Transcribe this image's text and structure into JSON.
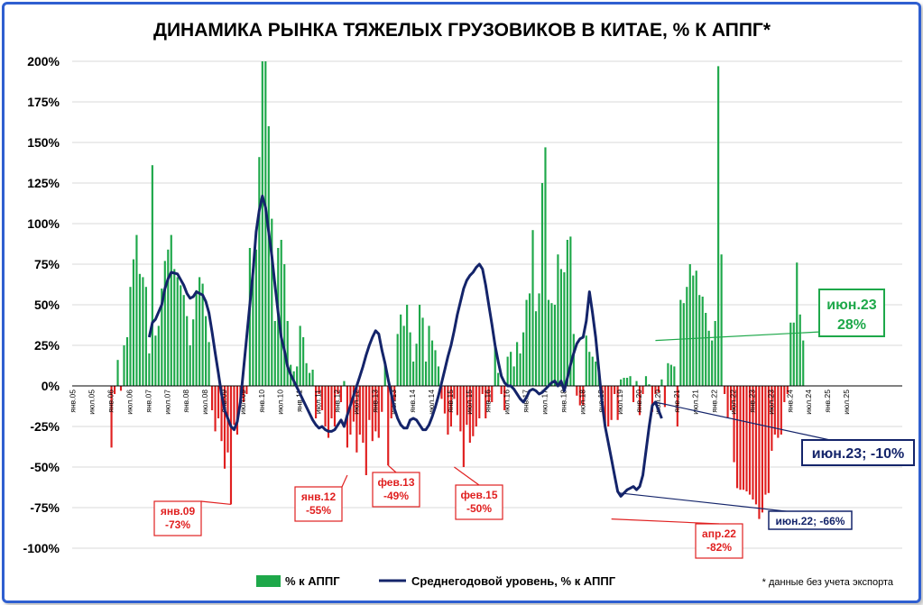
{
  "chart_data": {
    "type": "bar",
    "title": "ДИНАМИКА РЫНКА ТЯЖЕЛЫХ ГРУЗОВИКОВ В КИТАЕ, % К АППГ*",
    "ylim": [
      -100,
      200
    ],
    "yticks": [
      "-100%",
      "-75%",
      "-50%",
      "-25%",
      "0%",
      "25%",
      "50%",
      "75%",
      "100%",
      "125%",
      "150%",
      "175%",
      "200%"
    ],
    "x_start": "янв.05",
    "x_tick_labels": [
      "янв.05",
      "июл.05",
      "янв.06",
      "июл.06",
      "янв.07",
      "июл.07",
      "янв.08",
      "июл.08",
      "янв.09",
      "июл.09",
      "янв.10",
      "июл.10",
      "янв.11",
      "июл.11",
      "янв.12",
      "июл.12",
      "янв.13",
      "июл.13",
      "янв.14",
      "июл.14",
      "янв.15",
      "июл.15",
      "янв.16",
      "июл.16",
      "янв.17",
      "июл.17",
      "янв.18",
      "июл.18",
      "янв.19",
      "июл.19",
      "янв.20",
      "июл.20",
      "янв.21",
      "июл.21",
      "янв.22",
      "июл.22",
      "янв.23",
      "июл.23",
      "янв.24",
      "июл.24",
      "янв.25",
      "июл.25"
    ],
    "series": [
      {
        "name": "% к АППГ",
        "color_pos": "#1ea84a",
        "color_neg": "#e02020",
        "values": [
          null,
          null,
          null,
          null,
          null,
          null,
          null,
          null,
          null,
          null,
          null,
          null,
          -38,
          -5,
          16,
          -3,
          25,
          30,
          61,
          78,
          93,
          69,
          67,
          61,
          20,
          136,
          31,
          37,
          60,
          77,
          84,
          93,
          72,
          67,
          62,
          56,
          43,
          25,
          41,
          59,
          67,
          63,
          43,
          27,
          -15,
          -28,
          -20,
          -34,
          -51,
          -41,
          -73,
          -24,
          -30,
          -12,
          -10,
          -5,
          85,
          72,
          84,
          141,
          200,
          200,
          160,
          103,
          40,
          85,
          90,
          75,
          40,
          13,
          9,
          12,
          37,
          30,
          14,
          8,
          10,
          -20,
          -5,
          -15,
          -25,
          -32,
          -20,
          -25,
          -5,
          -10,
          3,
          -38,
          -30,
          -22,
          -41,
          -30,
          -35,
          -55,
          -21,
          -34,
          -28,
          -32,
          -16,
          13,
          -49,
          -20,
          -9,
          32,
          44,
          37,
          50,
          33,
          15,
          26,
          50,
          42,
          15,
          37,
          28,
          22,
          12,
          -8,
          -17,
          -30,
          -25,
          -8,
          -18,
          -28,
          -50,
          -24,
          -35,
          -31,
          -25,
          -20,
          -5,
          -20,
          -10,
          -10,
          26,
          8,
          -5,
          -15,
          18,
          21,
          12,
          27,
          20,
          33,
          53,
          57,
          96,
          46,
          57,
          125,
          147,
          53,
          51,
          50,
          81,
          72,
          70,
          90,
          92,
          32,
          -6,
          -12,
          -12,
          31,
          21,
          18,
          15,
          11,
          -5,
          -23,
          -25,
          -21,
          -5,
          -21,
          4,
          5,
          5,
          6,
          -10,
          3,
          -18,
          -5,
          6,
          1,
          -16,
          -5,
          -4,
          4,
          -13,
          14,
          13,
          12,
          -25,
          53,
          51,
          61,
          75,
          68,
          71,
          56,
          55,
          45,
          34,
          28,
          40,
          197,
          81,
          -5,
          -20,
          -15,
          -47,
          -63,
          -64,
          -64,
          -65,
          -67,
          -70,
          -73,
          -82,
          -78,
          -67,
          -66,
          -40,
          -30,
          -32,
          -30,
          -10,
          -5,
          39,
          39,
          76,
          44,
          28,
          null,
          null,
          null,
          null,
          null,
          null,
          null,
          null,
          null,
          null,
          null,
          null,
          null,
          null,
          null,
          null,
          null,
          null,
          null,
          null,
          null,
          null,
          null,
          null,
          null,
          null,
          null,
          null,
          null,
          null,
          null
        ]
      },
      {
        "name": "Среднегодовой уровень, % к АППГ",
        "color": "#14246a",
        "points": [
          [
            24,
            30
          ],
          [
            25,
            39
          ],
          [
            26,
            41
          ],
          [
            28,
            50
          ],
          [
            29,
            60
          ],
          [
            30,
            66
          ],
          [
            31,
            70
          ],
          [
            33,
            69
          ],
          [
            35,
            62
          ],
          [
            36,
            57
          ],
          [
            37,
            54
          ],
          [
            38,
            55
          ],
          [
            39,
            58
          ],
          [
            40,
            57
          ],
          [
            41,
            56
          ],
          [
            42,
            52
          ],
          [
            43,
            45
          ],
          [
            44,
            33
          ],
          [
            45,
            20
          ],
          [
            46,
            8
          ],
          [
            47,
            -5
          ],
          [
            48,
            -15
          ],
          [
            49,
            -20
          ],
          [
            50,
            -25
          ],
          [
            51,
            -27
          ],
          [
            52,
            -22
          ],
          [
            53,
            -10
          ],
          [
            54,
            10
          ],
          [
            55,
            30
          ],
          [
            56,
            50
          ],
          [
            57,
            70
          ],
          [
            58,
            95
          ],
          [
            59,
            108
          ],
          [
            60,
            117
          ],
          [
            61,
            110
          ],
          [
            62,
            95
          ],
          [
            63,
            80
          ],
          [
            64,
            62
          ],
          [
            65,
            45
          ],
          [
            66,
            30
          ],
          [
            67,
            22
          ],
          [
            68,
            12
          ],
          [
            69,
            7
          ],
          [
            70,
            3
          ],
          [
            71,
            -1
          ],
          [
            72,
            -5
          ],
          [
            73,
            -9
          ],
          [
            74,
            -13
          ],
          [
            75,
            -17
          ],
          [
            76,
            -21
          ],
          [
            77,
            -24
          ],
          [
            78,
            -26
          ],
          [
            79,
            -25
          ],
          [
            80,
            -27
          ],
          [
            81,
            -28
          ],
          [
            82,
            -28
          ],
          [
            83,
            -27
          ],
          [
            84,
            -24
          ],
          [
            85,
            -21
          ],
          [
            86,
            -25
          ],
          [
            87,
            -18
          ],
          [
            88,
            -12
          ],
          [
            89,
            -6
          ],
          [
            90,
            0
          ],
          [
            91,
            6
          ],
          [
            92,
            12
          ],
          [
            93,
            19
          ],
          [
            94,
            25
          ],
          [
            95,
            30
          ],
          [
            96,
            34
          ],
          [
            97,
            32
          ],
          [
            98,
            22
          ],
          [
            99,
            14
          ],
          [
            100,
            4
          ],
          [
            101,
            -5
          ],
          [
            102,
            -14
          ],
          [
            103,
            -20
          ],
          [
            104,
            -24
          ],
          [
            105,
            -26
          ],
          [
            106,
            -26
          ],
          [
            107,
            -21
          ],
          [
            108,
            -20
          ],
          [
            109,
            -21
          ],
          [
            110,
            -24
          ],
          [
            111,
            -27
          ],
          [
            112,
            -27
          ],
          [
            113,
            -24
          ],
          [
            114,
            -19
          ],
          [
            115,
            -13
          ],
          [
            116,
            -6
          ],
          [
            117,
            2
          ],
          [
            118,
            10
          ],
          [
            119,
            18
          ],
          [
            120,
            25
          ],
          [
            121,
            34
          ],
          [
            122,
            44
          ],
          [
            123,
            52
          ],
          [
            124,
            60
          ],
          [
            125,
            65
          ],
          [
            126,
            68
          ],
          [
            127,
            70
          ],
          [
            128,
            73
          ],
          [
            129,
            75
          ],
          [
            130,
            72
          ],
          [
            131,
            62
          ],
          [
            132,
            50
          ],
          [
            133,
            38
          ],
          [
            134,
            25
          ],
          [
            135,
            15
          ],
          [
            136,
            6
          ],
          [
            137,
            2
          ],
          [
            138,
            0
          ],
          [
            139,
            0
          ],
          [
            140,
            -2
          ],
          [
            141,
            -5
          ],
          [
            142,
            -8
          ],
          [
            143,
            -10
          ],
          [
            144,
            -7
          ],
          [
            145,
            -3
          ],
          [
            146,
            -2
          ],
          [
            147,
            -3
          ],
          [
            148,
            -5
          ],
          [
            149,
            -4
          ],
          [
            150,
            -2
          ],
          [
            151,
            0
          ],
          [
            152,
            2
          ],
          [
            153,
            3
          ],
          [
            154,
            0
          ],
          [
            155,
            3
          ],
          [
            156,
            -3
          ],
          [
            157,
            5
          ],
          [
            158,
            13
          ],
          [
            159,
            20
          ],
          [
            160,
            26
          ],
          [
            161,
            29
          ],
          [
            162,
            30
          ],
          [
            163,
            40
          ],
          [
            164,
            58
          ],
          [
            165,
            45
          ],
          [
            166,
            30
          ],
          [
            167,
            10
          ],
          [
            168,
            -10
          ],
          [
            169,
            -25
          ],
          [
            170,
            -35
          ],
          [
            171,
            -45
          ],
          [
            172,
            -55
          ],
          [
            173,
            -65
          ],
          [
            174,
            -68
          ],
          [
            175,
            -66
          ],
          [
            176,
            -64
          ],
          [
            177,
            -63
          ],
          [
            178,
            -62
          ],
          [
            179,
            -64
          ],
          [
            180,
            -62
          ],
          [
            181,
            -55
          ],
          [
            182,
            -40
          ],
          [
            183,
            -25
          ],
          [
            184,
            -12
          ],
          [
            185,
            -10
          ],
          [
            186,
            -15
          ],
          [
            187,
            -20
          ]
        ]
      }
    ],
    "annotations": [
      {
        "label": "янв.09",
        "value": "-73%"
      },
      {
        "label": "янв.12",
        "value": "-55%"
      },
      {
        "label": "фев.13",
        "value": "-49%"
      },
      {
        "label": "фев.15",
        "value": "-50%"
      },
      {
        "label": "апр.22",
        "value": "-82%"
      },
      {
        "label": "июн.22; -66%"
      },
      {
        "label": "июн.23; -10%"
      },
      {
        "label": "июн.23",
        "value": "28%"
      }
    ],
    "legend": [
      "% к АППГ",
      "Среднегодовой уровень, % к АППГ"
    ],
    "footnote": "* данные без учета экспорта"
  },
  "colors": {
    "border": "#2f5fd0",
    "pos_bar": "#1ea84a",
    "neg_bar": "#e02020",
    "line": "#14246a"
  }
}
